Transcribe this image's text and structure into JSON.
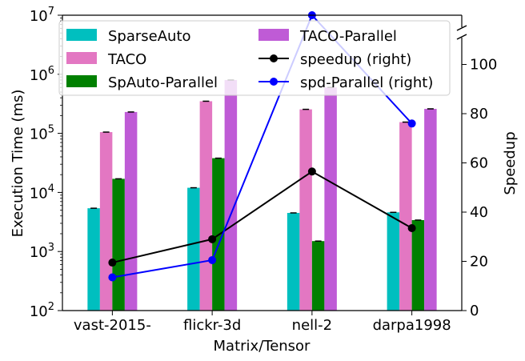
{
  "chart_data": {
    "type": "bar",
    "xlabel": "Matrix/Tensor",
    "ylabel": "Execution Time (ms)",
    "ylabel_right": "Speedup",
    "categories": [
      "vast-2015-",
      "flickr-3d",
      "nell-2",
      "darpa1998"
    ],
    "y_scale": "log",
    "ylim": [
      100,
      10000000
    ],
    "y_ticks": [
      {
        "value": 100,
        "base": "10",
        "exp": "2"
      },
      {
        "value": 1000,
        "base": "10",
        "exp": "3"
      },
      {
        "value": 10000,
        "base": "10",
        "exp": "4"
      },
      {
        "value": 100000,
        "base": "10",
        "exp": "5"
      },
      {
        "value": 1000000,
        "base": "10",
        "exp": "6"
      },
      {
        "value": 10000000,
        "base": "10",
        "exp": "7"
      }
    ],
    "y_right_ylim": [
      0,
      120
    ],
    "y_right_axis_break": true,
    "y_right_ticks": [
      {
        "value": 0,
        "label": "0"
      },
      {
        "value": 20,
        "label": "20"
      },
      {
        "value": 40,
        "label": "40"
      },
      {
        "value": 60,
        "label": "60"
      },
      {
        "value": 80,
        "label": "80"
      },
      {
        "value": 100,
        "label": "100"
      }
    ],
    "bar_series": [
      {
        "name": "SparseAuto",
        "color": "#00bfbf",
        "values": [
          5400,
          12000,
          4500,
          4600
        ]
      },
      {
        "name": "TACO",
        "color": "#e377c2",
        "values": [
          105000,
          350000,
          255000,
          155000
        ]
      },
      {
        "name": "SpAuto-Parallel",
        "color": "#008000",
        "values": [
          17000,
          38000,
          1500,
          3400
        ]
      },
      {
        "name": "TACO-Parallel",
        "color": "#bf5bd6",
        "values": [
          230000,
          800000,
          600000,
          260000
        ]
      }
    ],
    "line_series": [
      {
        "name": "speedup (right)",
        "color": "#000000",
        "values": [
          19.5,
          29,
          56.5,
          33.5
        ]
      },
      {
        "name": "spd-Parallel (right)",
        "color": "#0000ff",
        "values": [
          13.5,
          20.5,
          120,
          76
        ]
      }
    ],
    "legend_position": "upper-left, two columns",
    "grid": false
  }
}
